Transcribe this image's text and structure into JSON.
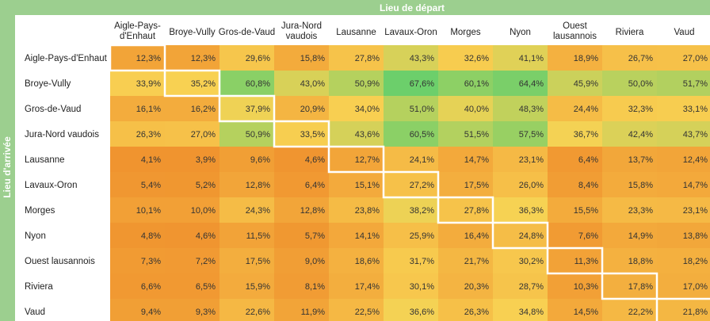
{
  "chart_data": {
    "type": "heatmap",
    "title": "",
    "x_axis_title": "Lieu de départ",
    "y_axis_title": "Lieu d'arrivée",
    "columns": [
      "Aigle-Pays-d'Enhaut",
      "Broye-Vully",
      "Gros-de-Vaud",
      "Jura-Nord vaudois",
      "Lausanne",
      "Lavaux-Oron",
      "Morges",
      "Nyon",
      "Ouest lausannois",
      "Riviera",
      "Vaud"
    ],
    "column_display_lines": [
      [
        "Aigle-Pays-",
        "d'Enhaut"
      ],
      [
        "Broye-Vully"
      ],
      [
        "Gros-de-Vaud"
      ],
      [
        "Jura-Nord",
        "vaudois"
      ],
      [
        "Lausanne"
      ],
      [
        "Lavaux-Oron"
      ],
      [
        "Morges"
      ],
      [
        "Nyon"
      ],
      [
        "Ouest",
        "lausannois"
      ],
      [
        "Riviera"
      ],
      [
        "Vaud"
      ]
    ],
    "rows": [
      "Aigle-Pays-d'Enhaut",
      "Broye-Vully",
      "Gros-de-Vaud",
      "Jura-Nord vaudois",
      "Lausanne",
      "Lavaux-Oron",
      "Morges",
      "Nyon",
      "Ouest lausannois",
      "Riviera",
      "Vaud"
    ],
    "values": [
      [
        12.3,
        12.3,
        29.6,
        15.8,
        27.8,
        43.3,
        32.6,
        41.1,
        18.9,
        26.7,
        27.0
      ],
      [
        33.9,
        35.2,
        60.8,
        43.0,
        50.9,
        67.6,
        60.1,
        64.4,
        45.9,
        50.0,
        51.7
      ],
      [
        16.1,
        16.2,
        37.9,
        20.9,
        34.0,
        51.0,
        40.0,
        48.3,
        24.4,
        32.3,
        33.1
      ],
      [
        26.3,
        27.0,
        50.9,
        33.5,
        43.6,
        60.5,
        51.5,
        57.5,
        36.7,
        42.4,
        43.7
      ],
      [
        4.1,
        3.9,
        9.6,
        4.6,
        12.7,
        24.1,
        14.7,
        23.1,
        6.4,
        13.7,
        12.4
      ],
      [
        5.4,
        5.2,
        12.8,
        6.4,
        15.1,
        27.2,
        17.5,
        26.0,
        8.4,
        15.8,
        14.7
      ],
      [
        10.1,
        10.0,
        24.3,
        12.8,
        23.8,
        38.2,
        27.8,
        36.3,
        15.5,
        23.3,
        23.1
      ],
      [
        4.8,
        4.6,
        11.5,
        5.7,
        14.1,
        25.9,
        16.4,
        24.8,
        7.6,
        14.9,
        13.8
      ],
      [
        7.3,
        7.2,
        17.5,
        9.0,
        18.6,
        31.7,
        21.7,
        30.2,
        11.3,
        18.8,
        18.2
      ],
      [
        6.6,
        6.5,
        15.9,
        8.1,
        17.4,
        30.1,
        20.3,
        28.7,
        10.3,
        17.8,
        17.0
      ],
      [
        9.4,
        9.3,
        22.6,
        11.9,
        22.5,
        36.6,
        26.3,
        34.8,
        14.5,
        22.2,
        21.8
      ]
    ],
    "value_unit": "%",
    "diagonal_outlined": true,
    "color_scale": {
      "low": "#f0942f",
      "mid": "#f8d253",
      "high": "#6ccf6b"
    },
    "header_band_color": "#9ccf8f",
    "outline_color": "#ffffff"
  }
}
